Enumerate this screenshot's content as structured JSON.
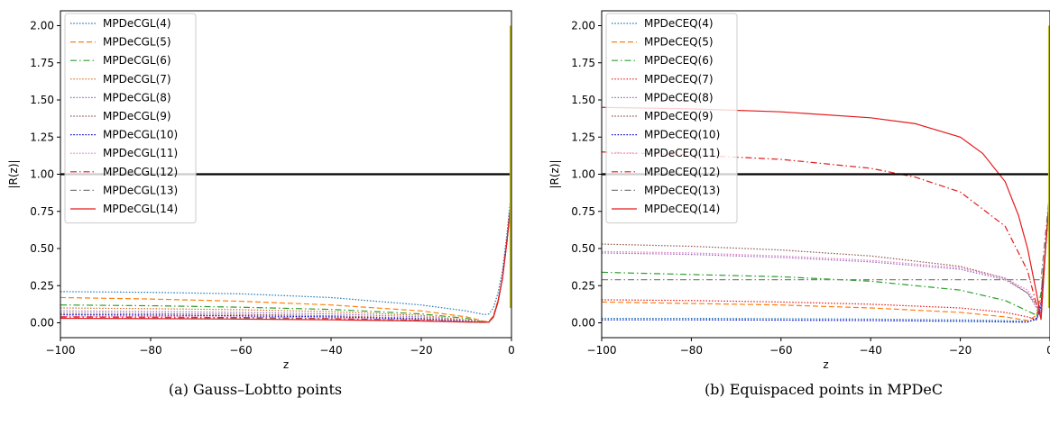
{
  "chart_data": [
    {
      "type": "line",
      "caption": "(a) Gauss–Lobtto points",
      "xlabel": "z",
      "ylabel": "|R(z)|",
      "xlim": [
        -100,
        0
      ],
      "ylim": [
        -0.1,
        2.1
      ],
      "xticks": [
        -100,
        -80,
        -60,
        -40,
        -20,
        0
      ],
      "xtick_labels": [
        "−100",
        "−80",
        "−60",
        "−40",
        "−20",
        "0"
      ],
      "yticks": [
        0,
        0.25,
        0.5,
        0.75,
        1.0,
        1.25,
        1.5,
        1.75,
        2.0
      ],
      "ytick_labels": [
        "0.00",
        "0.25",
        "0.50",
        "0.75",
        "1.00",
        "1.25",
        "1.50",
        "1.75",
        "2.00"
      ],
      "legend_position": "top-left",
      "reference_line": {
        "y": 1.0,
        "color": "#000000"
      },
      "vertical_marker": {
        "x": 0,
        "y_range": [
          0.1,
          2.0
        ],
        "color": "#bcbd22"
      },
      "series": [
        {
          "name": "MPDeCGL(4)",
          "color": "#1f77b4",
          "dash": "dotted",
          "x": [
            -100,
            -80,
            -60,
            -40,
            -20,
            -10,
            -6,
            -5,
            -4,
            -3,
            -2,
            -1,
            0
          ],
          "y": [
            0.21,
            0.205,
            0.195,
            0.17,
            0.12,
            0.08,
            0.055,
            0.06,
            0.1,
            0.2,
            0.35,
            0.6,
            0.9
          ]
        },
        {
          "name": "MPDeCGL(5)",
          "color": "#ff7f0e",
          "dash": "dashed",
          "x": [
            -100,
            -80,
            -60,
            -40,
            -20,
            -10,
            -6,
            -5,
            -4,
            -3,
            -2,
            -1,
            0
          ],
          "y": [
            0.17,
            0.16,
            0.145,
            0.12,
            0.08,
            0.04,
            0.01,
            0.01,
            0.05,
            0.15,
            0.3,
            0.55,
            0.85
          ]
        },
        {
          "name": "MPDeCGL(6)",
          "color": "#2ca02c",
          "dash": "dashdot",
          "x": [
            -100,
            -80,
            -60,
            -40,
            -20,
            -10,
            -6,
            -5,
            -4,
            -3,
            -2,
            -1,
            0
          ],
          "y": [
            0.12,
            0.115,
            0.105,
            0.09,
            0.06,
            0.03,
            0.005,
            0.005,
            0.04,
            0.14,
            0.3,
            0.55,
            0.85
          ]
        },
        {
          "name": "MPDeCGL(7)",
          "color": "#d2691e",
          "dash": "dotted",
          "x": [
            -100,
            -80,
            -60,
            -40,
            -20,
            -10,
            -6,
            -5,
            -4,
            -3,
            -2,
            -1,
            0
          ],
          "y": [
            0.1,
            0.095,
            0.088,
            0.075,
            0.05,
            0.02,
            0.005,
            0.005,
            0.04,
            0.14,
            0.3,
            0.55,
            0.85
          ]
        },
        {
          "name": "MPDeCGL(8)",
          "color": "#9467bd",
          "dash": "dotted",
          "x": [
            -100,
            -80,
            -60,
            -40,
            -20,
            -10,
            -6,
            -5,
            -4,
            -3,
            -2,
            -1,
            0
          ],
          "y": [
            0.08,
            0.076,
            0.07,
            0.06,
            0.04,
            0.015,
            0.005,
            0.005,
            0.04,
            0.14,
            0.3,
            0.55,
            0.85
          ]
        },
        {
          "name": "MPDeCGL(9)",
          "color": "#8c564b",
          "dash": "dotted",
          "x": [
            -100,
            -80,
            -60,
            -40,
            -20,
            -10,
            -6,
            -5,
            -4,
            -3,
            -2,
            -1,
            0
          ],
          "y": [
            0.065,
            0.062,
            0.057,
            0.048,
            0.03,
            0.012,
            0.005,
            0.005,
            0.04,
            0.14,
            0.3,
            0.55,
            0.85
          ]
        },
        {
          "name": "MPDeCGL(10)",
          "color": "#0000cd",
          "dash": "dotted",
          "x": [
            -100,
            -80,
            -60,
            -40,
            -20,
            -10,
            -6,
            -5,
            -4,
            -3,
            -2,
            -1,
            0
          ],
          "y": [
            0.055,
            0.052,
            0.047,
            0.04,
            0.025,
            0.01,
            0.005,
            0.005,
            0.04,
            0.14,
            0.3,
            0.55,
            0.85
          ]
        },
        {
          "name": "MPDeCGL(11)",
          "color": "#e377c2",
          "dash": "dotted",
          "x": [
            -100,
            -80,
            -60,
            -40,
            -20,
            -10,
            -6,
            -5,
            -4,
            -3,
            -2,
            -1,
            0
          ],
          "y": [
            0.045,
            0.043,
            0.04,
            0.033,
            0.02,
            0.008,
            0.005,
            0.005,
            0.04,
            0.14,
            0.3,
            0.55,
            0.85
          ]
        },
        {
          "name": "MPDeCGL(12)",
          "color": "#e31a1c",
          "dash": "dashdot",
          "x": [
            -100,
            -80,
            -60,
            -40,
            -20,
            -10,
            -6,
            -5,
            -4,
            -3,
            -2,
            -1,
            0
          ],
          "y": [
            0.04,
            0.038,
            0.035,
            0.028,
            0.017,
            0.007,
            0.004,
            0.005,
            0.04,
            0.14,
            0.3,
            0.55,
            0.85
          ]
        },
        {
          "name": "MPDeCGL(13)",
          "color": "#7f7f7f",
          "dash": "dashdot",
          "x": [
            -100,
            -80,
            -60,
            -40,
            -20,
            -10,
            -6,
            -5,
            -4,
            -3,
            -2,
            -1,
            0
          ],
          "y": [
            0.035,
            0.033,
            0.03,
            0.025,
            0.015,
            0.006,
            0.004,
            0.005,
            0.04,
            0.14,
            0.3,
            0.55,
            0.85
          ]
        },
        {
          "name": "MPDeCGL(14)",
          "color": "#e31a1c",
          "dash": "solid",
          "x": [
            -100,
            -80,
            -60,
            -40,
            -20,
            -10,
            -6,
            -5,
            -4,
            -3,
            -2,
            -1,
            0
          ],
          "y": [
            0.03,
            0.028,
            0.025,
            0.02,
            0.012,
            0.005,
            0.003,
            0.005,
            0.04,
            0.14,
            0.3,
            0.55,
            0.85
          ]
        }
      ]
    },
    {
      "type": "line",
      "caption": "(b) Equispaced points in MPDeC",
      "xlabel": "z",
      "ylabel": "|R(z)|",
      "xlim": [
        -100,
        0
      ],
      "ylim": [
        -0.1,
        2.1
      ],
      "xticks": [
        -100,
        -80,
        -60,
        -40,
        -20,
        0
      ],
      "xtick_labels": [
        "−100",
        "−80",
        "−60",
        "−40",
        "−20",
        "0"
      ],
      "yticks": [
        0,
        0.25,
        0.5,
        0.75,
        1.0,
        1.25,
        1.5,
        1.75,
        2.0
      ],
      "ytick_labels": [
        "0.00",
        "0.25",
        "0.50",
        "0.75",
        "1.00",
        "1.25",
        "1.50",
        "1.75",
        "2.00"
      ],
      "legend_position": "top-left",
      "reference_line": {
        "y": 1.0,
        "color": "#000000"
      },
      "vertical_marker": {
        "x": 0,
        "y_range": [
          0.1,
          2.0
        ],
        "color": "#bcbd22"
      },
      "series": [
        {
          "name": "MPDeCEQ(4)",
          "color": "#1f77b4",
          "dash": "dotted",
          "x": [
            -100,
            -80,
            -60,
            -40,
            -20,
            -10,
            -5,
            -3,
            -2,
            -1,
            0
          ],
          "y": [
            0.03,
            0.03,
            0.028,
            0.025,
            0.02,
            0.015,
            0.01,
            0.02,
            0.1,
            0.5,
            0.9
          ]
        },
        {
          "name": "MPDeCEQ(5)",
          "color": "#ff7f0e",
          "dash": "dashed",
          "x": [
            -100,
            -80,
            -60,
            -40,
            -20,
            -10,
            -5,
            -3,
            -2,
            -1,
            0
          ],
          "y": [
            0.14,
            0.13,
            0.12,
            0.1,
            0.07,
            0.04,
            0.015,
            0.05,
            0.2,
            0.5,
            0.9
          ]
        },
        {
          "name": "MPDeCEQ(6)",
          "color": "#2ca02c",
          "dash": "dashdot",
          "x": [
            -100,
            -80,
            -60,
            -40,
            -20,
            -10,
            -5,
            -3,
            -2,
            -1,
            0
          ],
          "y": [
            0.34,
            0.325,
            0.31,
            0.28,
            0.22,
            0.15,
            0.08,
            0.05,
            0.2,
            0.5,
            0.9
          ]
        },
        {
          "name": "MPDeCEQ(7)",
          "color": "#e31a1c",
          "dash": "dotted",
          "x": [
            -100,
            -80,
            -60,
            -40,
            -20,
            -10,
            -5,
            -3,
            -2,
            -1,
            0
          ],
          "y": [
            0.155,
            0.15,
            0.14,
            0.125,
            0.1,
            0.07,
            0.04,
            0.02,
            0.15,
            0.5,
            0.9
          ]
        },
        {
          "name": "MPDeCEQ(8)",
          "color": "#9467bd",
          "dash": "dotted",
          "x": [
            -100,
            -80,
            -60,
            -40,
            -20,
            -10,
            -5,
            -3,
            -2,
            -1,
            0
          ],
          "y": [
            0.47,
            0.46,
            0.44,
            0.41,
            0.36,
            0.29,
            0.2,
            0.1,
            0.08,
            0.5,
            0.9
          ]
        },
        {
          "name": "MPDeCEQ(9)",
          "color": "#8c564b",
          "dash": "dotted",
          "x": [
            -100,
            -80,
            -60,
            -40,
            -20,
            -10,
            -5,
            -3,
            -2,
            -1,
            0
          ],
          "y": [
            0.53,
            0.515,
            0.49,
            0.45,
            0.38,
            0.3,
            0.2,
            0.12,
            0.06,
            0.5,
            0.9
          ]
        },
        {
          "name": "MPDeCEQ(10)",
          "color": "#0000cd",
          "dash": "dotted",
          "x": [
            -100,
            -80,
            -60,
            -40,
            -20,
            -10,
            -5,
            -3,
            -2,
            -1,
            0
          ],
          "y": [
            0.02,
            0.02,
            0.018,
            0.015,
            0.01,
            0.006,
            0.004,
            0.03,
            0.12,
            0.5,
            0.9
          ]
        },
        {
          "name": "MPDeCEQ(11)",
          "color": "#e377c2",
          "dash": "dotted",
          "x": [
            -100,
            -80,
            -60,
            -40,
            -20,
            -10,
            -5,
            -3,
            -2,
            -1,
            0
          ],
          "y": [
            0.48,
            0.47,
            0.45,
            0.42,
            0.37,
            0.3,
            0.22,
            0.13,
            0.07,
            0.5,
            0.9
          ]
        },
        {
          "name": "MPDeCEQ(12)",
          "color": "#e31a1c",
          "dash": "dashdot",
          "x": [
            -100,
            -80,
            -60,
            -40,
            -30,
            -20,
            -10,
            -5,
            -3,
            -2,
            -1,
            0
          ],
          "y": [
            1.15,
            1.13,
            1.1,
            1.04,
            0.98,
            0.88,
            0.65,
            0.35,
            0.12,
            0.03,
            0.5,
            0.9
          ]
        },
        {
          "name": "MPDeCEQ(13)",
          "color": "#7f7f7f",
          "dash": "dashdot",
          "x": [
            -100,
            -80,
            -60,
            -40,
            -20,
            -10,
            -5,
            -3,
            -2,
            -1,
            0
          ],
          "y": [
            0.29,
            0.29,
            0.29,
            0.29,
            0.29,
            0.29,
            0.29,
            0.29,
            0.29,
            0.6,
            0.9
          ]
        },
        {
          "name": "MPDeCEQ(14)",
          "color": "#e31a1c",
          "dash": "solid",
          "x": [
            -100,
            -80,
            -60,
            -40,
            -30,
            -20,
            -15,
            -10,
            -7,
            -5,
            -3,
            -2,
            -1,
            0
          ],
          "y": [
            1.45,
            1.44,
            1.42,
            1.38,
            1.34,
            1.25,
            1.14,
            0.95,
            0.72,
            0.5,
            0.2,
            0.02,
            0.5,
            0.9
          ]
        }
      ]
    }
  ]
}
